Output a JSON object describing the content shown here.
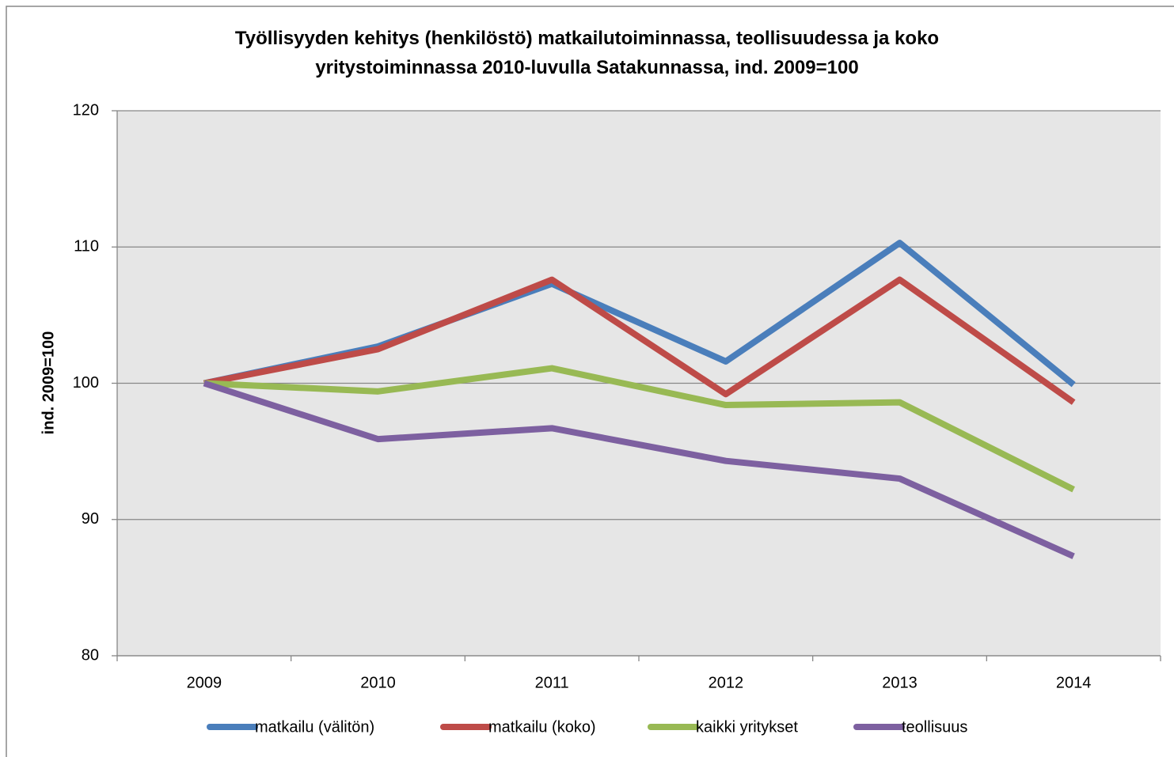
{
  "chart_data": {
    "type": "line",
    "title": "Työllisyyden kehitys (henkilöstö) matkailutoiminnassa, teollisuudessa ja koko yritystoiminnassa 2010-luvulla Satakunnassa, ind. 2009=100",
    "y_label": "ind. 2009=100",
    "categories": [
      "2009",
      "2010",
      "2011",
      "2012",
      "2013",
      "2014"
    ],
    "series": [
      {
        "name": "matkailu (välitön)",
        "color": "#4a7ebb",
        "values": [
          100,
          102.7,
          107.3,
          101.6,
          110.3,
          99.9
        ]
      },
      {
        "name": "matkailu (koko)",
        "color": "#be4b48",
        "values": [
          100,
          102.5,
          107.6,
          99.2,
          107.6,
          98.6
        ]
      },
      {
        "name": "kaikki yritykset",
        "color": "#98b954",
        "values": [
          100,
          99.4,
          101.1,
          98.4,
          98.6,
          92.2
        ]
      },
      {
        "name": "teollisuus",
        "color": "#7d60a0",
        "values": [
          100,
          95.9,
          96.7,
          94.3,
          93.0,
          87.3
        ]
      }
    ],
    "ylim": [
      80,
      120
    ],
    "yticks": [
      80,
      90,
      100,
      110,
      120
    ],
    "grid": true,
    "legend": "bottom"
  }
}
